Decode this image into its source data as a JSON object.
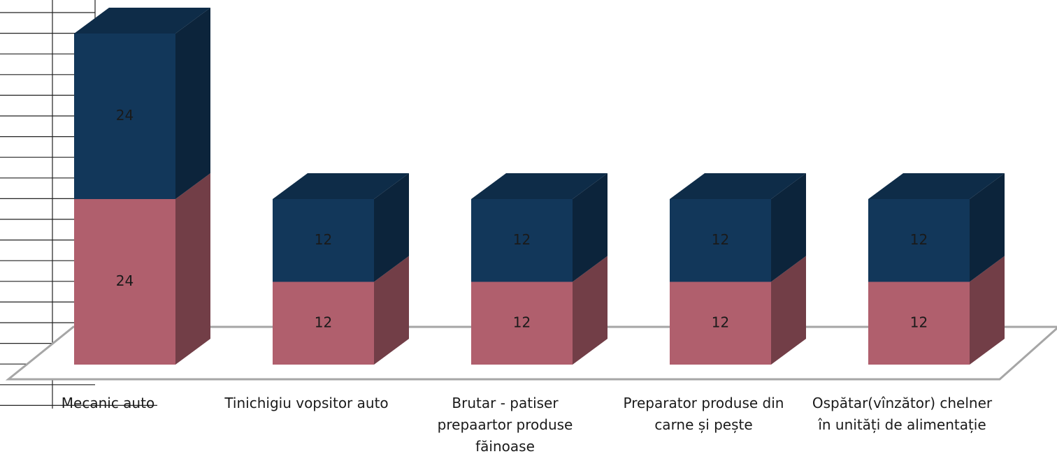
{
  "chart_data": {
    "type": "bar3d_stacked",
    "categories": [
      "Mecanic auto",
      "Tinichigiu vopsitor auto",
      "Brutar - patiser prepaartor produse făinoase",
      "Preparator produse din carne și pește",
      "Ospătar(vînzător) chelner în unități de alimentație"
    ],
    "series": [
      {
        "color": "#b05f6d",
        "values": [
          24,
          12,
          12,
          12,
          12
        ]
      },
      {
        "color": "#12375a",
        "values": [
          24,
          12,
          12,
          12,
          12
        ]
      }
    ]
  }
}
